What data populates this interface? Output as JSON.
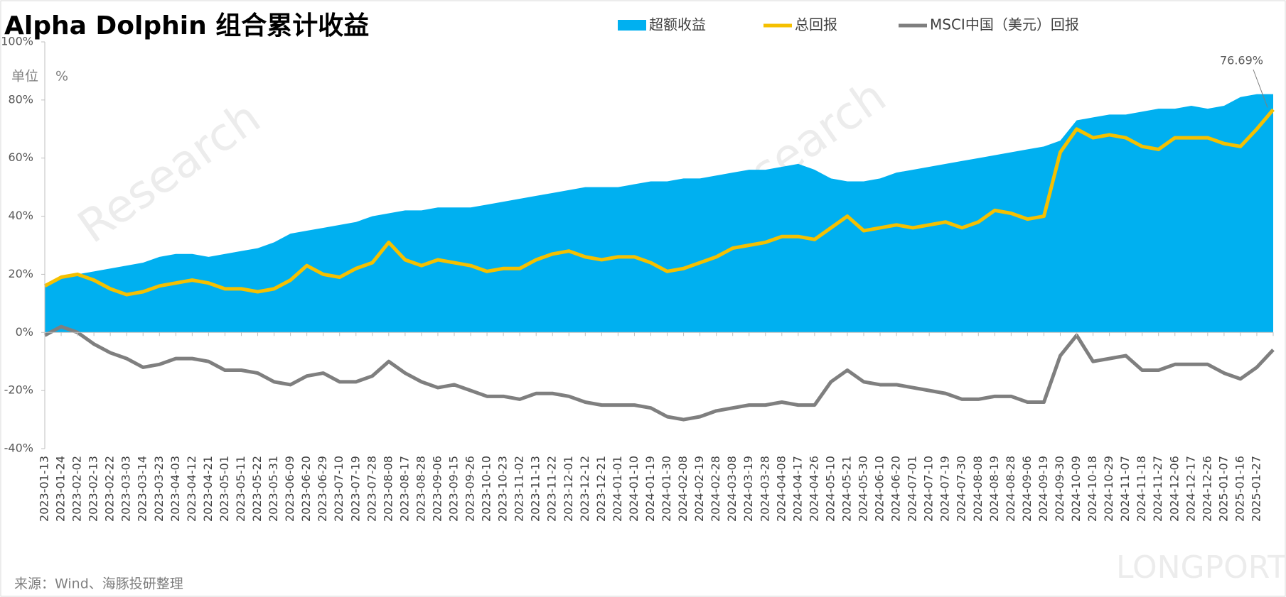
{
  "chart_data": {
    "type": "area-line",
    "title": "Alpha Dolphin 组合累计收益",
    "unit_label": "单位",
    "unit": "%",
    "source": "来源：Wind、海豚投研整理",
    "watermarks": [
      "Research",
      "LONGPORT"
    ],
    "categories": [
      "2023-01-13",
      "2023-01-24",
      "2023-02-02",
      "2023-02-13",
      "2023-02-22",
      "2023-03-03",
      "2023-03-14",
      "2023-03-23",
      "2023-04-03",
      "2023-04-12",
      "2023-04-21",
      "2023-05-01",
      "2023-05-11",
      "2023-05-22",
      "2023-05-31",
      "2023-06-09",
      "2023-06-20",
      "2023-06-29",
      "2023-07-10",
      "2023-07-19",
      "2023-07-28",
      "2023-08-08",
      "2023-08-17",
      "2023-08-28",
      "2023-09-06",
      "2023-09-15",
      "2023-09-26",
      "2023-10-10",
      "2023-10-23",
      "2023-11-02",
      "2023-11-13",
      "2023-11-22",
      "2023-12-01",
      "2023-12-12",
      "2023-12-21",
      "2024-01-01",
      "2024-01-10",
      "2024-01-19",
      "2024-01-30",
      "2024-02-08",
      "2024-02-19",
      "2024-02-28",
      "2024-03-08",
      "2024-03-19",
      "2024-03-28",
      "2024-04-08",
      "2024-04-17",
      "2024-04-26",
      "2024-05-10",
      "2024-05-21",
      "2024-05-30",
      "2024-06-10",
      "2024-06-20",
      "2024-07-01",
      "2024-07-10",
      "2024-07-19",
      "2024-07-30",
      "2024-08-08",
      "2024-08-19",
      "2024-08-28",
      "2024-09-06",
      "2024-09-19",
      "2024-09-30",
      "2024-10-09",
      "2024-10-18",
      "2024-10-29",
      "2024-11-07",
      "2024-11-18",
      "2024-11-27",
      "2024-12-06",
      "2024-12-17",
      "2024-12-26",
      "2025-01-07",
      "2025-01-16",
      "2025-01-27",
      null
    ],
    "series": [
      {
        "name": "超额收益",
        "kind": "area",
        "color": "#00b0f0",
        "values": [
          16,
          19,
          20,
          21,
          22,
          23,
          24,
          26,
          27,
          27,
          26,
          27,
          28,
          29,
          31,
          34,
          35,
          36,
          37,
          38,
          40,
          41,
          42,
          42,
          43,
          43,
          43,
          44,
          45,
          46,
          47,
          48,
          49,
          50,
          50,
          50,
          51,
          52,
          52,
          53,
          53,
          54,
          55,
          56,
          56,
          57,
          58,
          56,
          53,
          52,
          52,
          53,
          55,
          56,
          57,
          58,
          59,
          60,
          61,
          62,
          63,
          64,
          66,
          73,
          74,
          75,
          75,
          76,
          77,
          77,
          78,
          77,
          78,
          81,
          82,
          82
        ]
      },
      {
        "name": "总回报",
        "kind": "line",
        "color": "#f5c000",
        "values": [
          16,
          19,
          20,
          18,
          15,
          13,
          14,
          16,
          17,
          18,
          17,
          15,
          15,
          14,
          15,
          18,
          23,
          20,
          19,
          22,
          24,
          31,
          25,
          23,
          25,
          24,
          23,
          21,
          22,
          22,
          25,
          27,
          28,
          26,
          25,
          26,
          26,
          24,
          21,
          22,
          24,
          26,
          29,
          30,
          31,
          33,
          33,
          32,
          36,
          40,
          35,
          36,
          37,
          36,
          37,
          38,
          36,
          38,
          42,
          41,
          39,
          40,
          62,
          70,
          67,
          68,
          67,
          64,
          63,
          67,
          67,
          67,
          65,
          64,
          70,
          76.69
        ],
        "value_labels": [
          null,
          null,
          null,
          null,
          null,
          null,
          null,
          null,
          null,
          null,
          null,
          null,
          null,
          null,
          null,
          null,
          null,
          null,
          null,
          null,
          null,
          null,
          null,
          null,
          null,
          null,
          null,
          null,
          null,
          null,
          null,
          null,
          null,
          null,
          null,
          null,
          null,
          null,
          null,
          null,
          null,
          null,
          null,
          null,
          null,
          null,
          null,
          null,
          null,
          null,
          null,
          null,
          null,
          null,
          null,
          null,
          null,
          null,
          null,
          null,
          null,
          null,
          null,
          null,
          null,
          null,
          null,
          null,
          null,
          null,
          null,
          null,
          null,
          null,
          null,
          "76.69%"
        ]
      },
      {
        "name": "MSCI中国（美元）回报",
        "kind": "line",
        "color": "#7f7f7f",
        "values": [
          -1,
          2,
          0,
          -4,
          -7,
          -9,
          -12,
          -11,
          -9,
          -9,
          -10,
          -13,
          -13,
          -14,
          -17,
          -18,
          -15,
          -14,
          -17,
          -17,
          -15,
          -10,
          -14,
          -17,
          -19,
          -18,
          -20,
          -22,
          -22,
          -23,
          -21,
          -21,
          -22,
          -24,
          -25,
          -25,
          -25,
          -26,
          -29,
          -30,
          -29,
          -27,
          -26,
          -25,
          -25,
          -24,
          -25,
          -25,
          -17,
          -13,
          -17,
          -18,
          -18,
          -19,
          -20,
          -21,
          -23,
          -23,
          -22,
          -22,
          -24,
          -24,
          -8,
          -1,
          -10,
          -9,
          -8,
          -13,
          -13,
          -11,
          -11,
          -11,
          -14,
          -16,
          -12,
          -6
        ]
      }
    ],
    "ylim": [
      -40,
      100
    ],
    "yticks": [
      {
        "value": -40,
        "label": "-40%"
      },
      {
        "value": -20,
        "label": "-20%"
      },
      {
        "value": 0,
        "label": "0%"
      },
      {
        "value": 20,
        "label": "20%"
      },
      {
        "value": 40,
        "label": "40%"
      },
      {
        "value": 60,
        "label": "60%"
      },
      {
        "value": 80,
        "label": "80%"
      },
      {
        "value": 100,
        "label": "100%"
      }
    ],
    "grid": false,
    "legend": "top"
  }
}
